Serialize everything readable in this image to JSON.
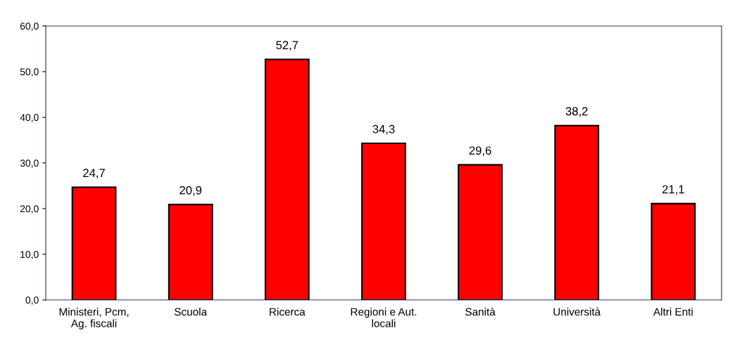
{
  "chart_data": {
    "type": "bar",
    "categories": [
      "Ministeri, Pcm,\nAg. fiscali",
      "Scuola",
      "Ricerca",
      "Regioni e Aut.\nlocali",
      "Sanità",
      "Università",
      "Altri Enti"
    ],
    "values": [
      24.7,
      20.9,
      52.7,
      34.3,
      29.6,
      38.2,
      21.1
    ],
    "value_labels": [
      "24,7",
      "20,9",
      "52,7",
      "34,3",
      "29,6",
      "38,2",
      "21,1"
    ],
    "color": "#ff0000",
    "ylim": [
      0,
      60
    ],
    "yticks": [
      {
        "value": 0,
        "label": "0,0"
      },
      {
        "value": 10,
        "label": "10,0"
      },
      {
        "value": 20,
        "label": "20,0"
      },
      {
        "value": 30,
        "label": "30,0"
      },
      {
        "value": 40,
        "label": "40,0"
      },
      {
        "value": 50,
        "label": "50,0"
      },
      {
        "value": 60,
        "label": "60,0"
      }
    ],
    "grid": false
  }
}
